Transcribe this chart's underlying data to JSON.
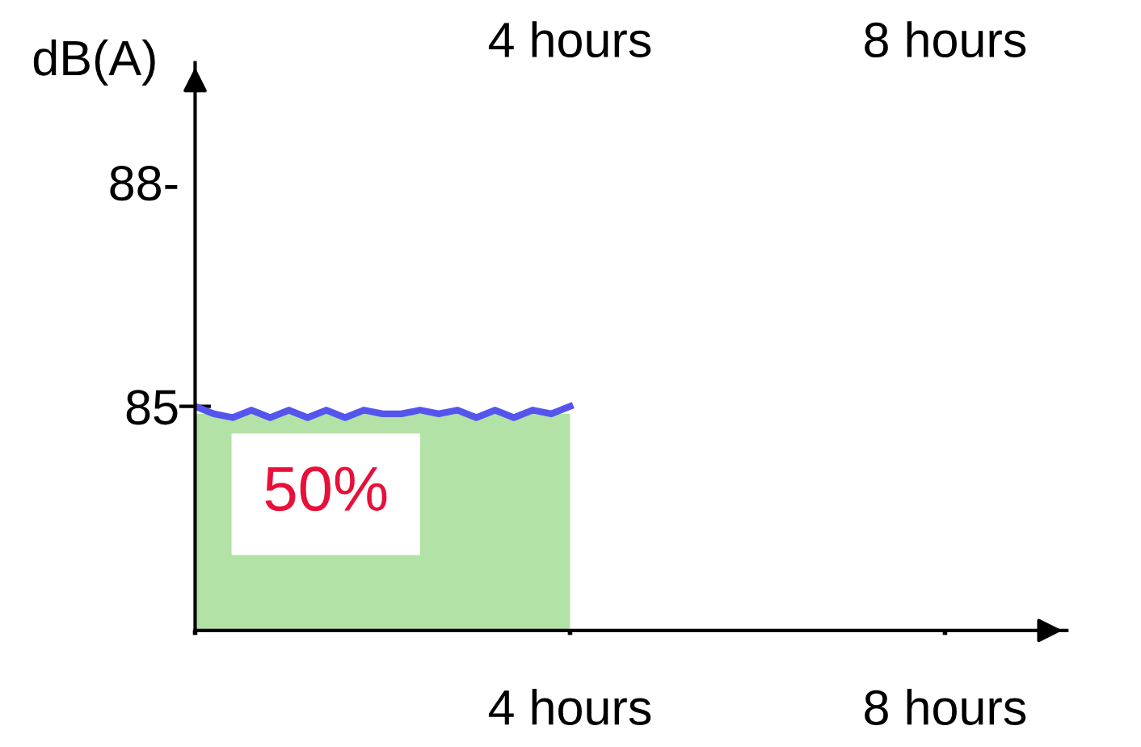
{
  "chart_data": {
    "type": "area",
    "ylabel": "dB(A)",
    "series": [
      {
        "color": "#b3e2a7",
        "x": [
          0,
          4
        ],
        "values": [
          84.9,
          84.9
        ]
      },
      {
        "type": "line",
        "color": "#5555ee",
        "x": [
          0,
          0.2,
          0.4,
          0.6,
          0.8,
          1.0,
          1.2,
          1.4,
          1.6,
          1.8,
          2.0,
          2.2,
          2.4,
          2.6,
          2.8,
          3.0,
          3.2,
          3.4,
          3.6,
          3.8,
          4.0
        ],
        "values": [
          85.0,
          84.9,
          84.85,
          84.95,
          84.85,
          84.95,
          84.85,
          84.95,
          84.85,
          84.95,
          84.9,
          84.9,
          84.95,
          84.9,
          84.95,
          84.85,
          84.95,
          84.85,
          84.95,
          84.9,
          85.0
        ]
      }
    ],
    "xlim": [
      0,
      9.3
    ],
    "xticks": [
      {
        "value": 0,
        "label": null
      },
      {
        "value": 4,
        "label": "4 hours"
      },
      {
        "value": 8,
        "label": "8 hours"
      }
    ],
    "x2lim": [
      0,
      9.3
    ],
    "x2ticks": [
      {
        "value": 4,
        "label": "4 hours"
      },
      {
        "value": 8,
        "label": "8 hours"
      }
    ],
    "ylim": [
      82,
      89.6
    ],
    "yticks": [
      85,
      {
        "value": 88,
        "label": "88-"
      }
    ],
    "annotations": [
      "50%"
    ],
    "grid": false,
    "legend": false
  }
}
